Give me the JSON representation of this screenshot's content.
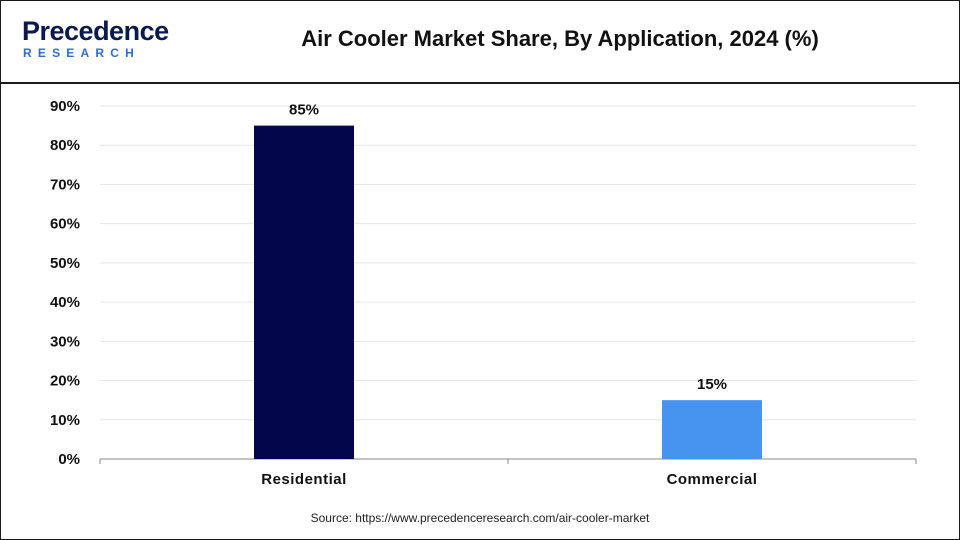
{
  "header": {
    "logo_word": "Precedence",
    "logo_sub": "RESEARCH",
    "title": "Air Cooler Market Share, By Application, 2024 (%)"
  },
  "chart_data": {
    "type": "bar",
    "title": "Air Cooler Market Share, By Application, 2024 (%)",
    "categories": [
      "Residential",
      "Commercial"
    ],
    "values": [
      85,
      15
    ],
    "data_labels": [
      "85%",
      "15%"
    ],
    "colors": [
      "#03064a",
      "#4794f0"
    ],
    "ylim": [
      0,
      90
    ],
    "yticks": [
      0,
      10,
      20,
      30,
      40,
      50,
      60,
      70,
      80,
      90
    ],
    "ytick_labels": [
      "0%",
      "10%",
      "20%",
      "30%",
      "40%",
      "50%",
      "60%",
      "70%",
      "80%",
      "90%"
    ],
    "xlabel": "",
    "ylabel": "",
    "grid": true,
    "legend": "none"
  },
  "footer": {
    "source": "Source: https://www.precedenceresearch.com/air-cooler-market"
  }
}
